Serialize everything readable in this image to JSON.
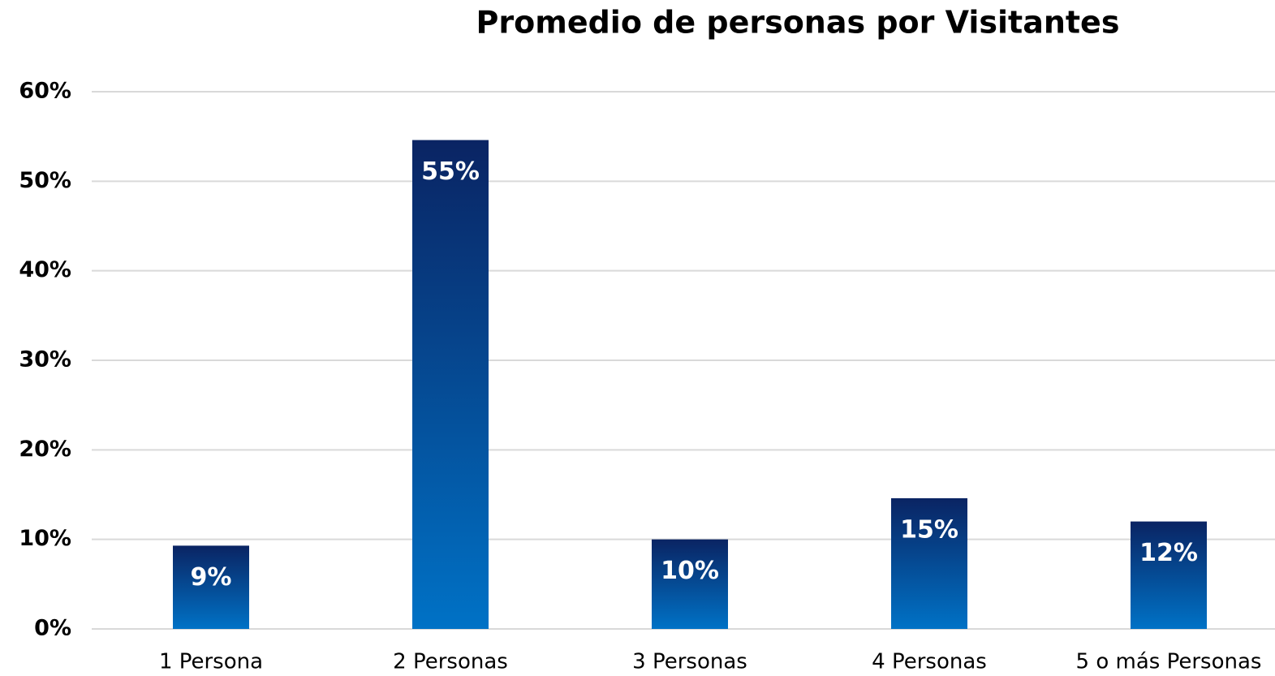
{
  "chart_data": {
    "type": "bar",
    "title": "Promedio de personas por Visitantes",
    "categories": [
      "1 Persona",
      "2 Personas",
      "3 Personas",
      "4 Personas",
      "5  o más Personas"
    ],
    "values": [
      9.3,
      54.6,
      10,
      14.6,
      12
    ],
    "value_labels": [
      "9%",
      "55%",
      "10%",
      "15%",
      "12%"
    ],
    "colors": [
      "#0a2463",
      "#0072c6"
    ],
    "ylim": [
      0,
      60
    ],
    "yticks": [
      {
        "value": 0,
        "label": "0%"
      },
      {
        "value": 10,
        "label": "10%"
      },
      {
        "value": 20,
        "label": "20%"
      },
      {
        "value": 30,
        "label": "30%"
      },
      {
        "value": 40,
        "label": "40%"
      },
      {
        "value": 50,
        "label": "50%"
      },
      {
        "value": 60,
        "label": "60%"
      }
    ],
    "grid": true
  }
}
